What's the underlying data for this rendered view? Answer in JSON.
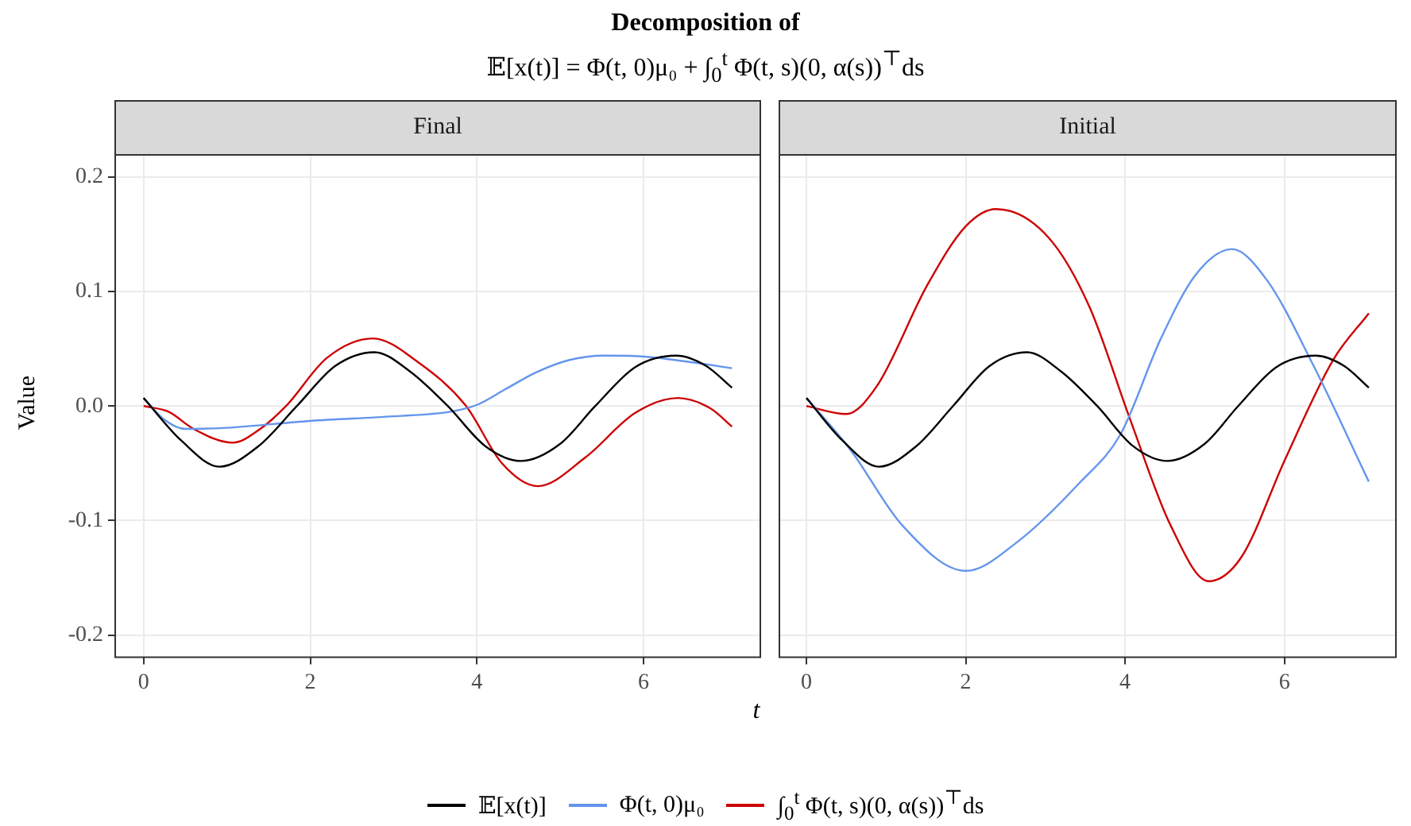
{
  "chart_data": [
    {
      "type": "line",
      "title": "Final",
      "annotations": [
        "Decomposition of",
        "𝔼[x(t)] = Φ(t, 0)μ₀ + ∫$_{0}$$^{t}$ Φ(t, s)(0, α(s))$^{⊤}$ds"
      ],
      "xlabel": "t",
      "ylabel": "Value",
      "xlim": [
        -0.35,
        7.41
      ],
      "ylim": [
        -0.22,
        0.22
      ],
      "xticks": [
        0,
        2,
        4,
        6
      ],
      "grid": true,
      "legend": "bottom",
      "tick_labels": "xy",
      "yticks": [
        -0.2,
        -0.1,
        {
          "value": 0,
          "label": "0.0"
        },
        0.1,
        0.2
      ],
      "series": [
        {
          "name": "𝔼[x(t)]",
          "color": "#000000",
          "x": [
            0,
            0.45,
            0.91,
            1.38,
            1.84,
            2.3,
            2.77,
            3.2,
            3.65,
            4.1,
            4.53,
            5.0,
            5.42,
            5.9,
            6.39,
            6.75,
            7.06
          ],
          "values": [
            0.007,
            -0.03,
            -0.053,
            -0.035,
            0,
            0.035,
            0.047,
            0.03,
            0,
            -0.035,
            -0.048,
            -0.033,
            0,
            0.034,
            0.044,
            0.035,
            0.016
          ]
        },
        {
          "name": "Φ(t, 0)μ₀",
          "color": "#6495ed",
          "x": [
            0,
            0.25,
            0.5,
            1.0,
            2.0,
            3.0,
            3.68,
            4.0,
            4.35,
            4.7,
            5.1,
            5.53,
            6.04,
            6.5,
            7.06
          ],
          "values": [
            0.007,
            -0.012,
            -0.02,
            -0.019,
            -0.013,
            -0.009,
            -0.005,
            0.001,
            0.015,
            0.029,
            0.04,
            0.044,
            0.043,
            0.039,
            0.033
          ]
        },
        {
          "name": "∫$_{0}$$^{t}$ Φ(t, s)(0, α(s))$^{⊤}$ds",
          "color": "#cd0000",
          "x": [
            0,
            0.3,
            0.6,
            1.07,
            1.4,
            1.71,
            2.2,
            2.75,
            3.3,
            3.87,
            4.3,
            4.73,
            5.3,
            5.9,
            6.41,
            6.8,
            7.06
          ],
          "values": [
            0,
            -0.005,
            -0.02,
            -0.032,
            -0.02,
            0,
            0.042,
            0.059,
            0.038,
            0,
            -0.05,
            -0.07,
            -0.045,
            -0.006,
            0.007,
            -0.002,
            -0.018
          ]
        }
      ]
    },
    {
      "type": "line",
      "title": "Initial",
      "xlim": [
        -0.35,
        7.41
      ],
      "ylim": [
        -0.22,
        0.22
      ],
      "xticks": [
        0,
        2,
        4,
        6
      ],
      "yticks": [
        -0.2,
        -0.1,
        0,
        0.1,
        0.2
      ],
      "grid": true,
      "legend": "bottom",
      "tick_labels": "x",
      "series": [
        {
          "name": "𝔼[x(t)]",
          "color": "#000000",
          "x": [
            0,
            0.45,
            0.91,
            1.38,
            1.84,
            2.3,
            2.77,
            3.2,
            3.65,
            4.1,
            4.53,
            5.0,
            5.42,
            5.9,
            6.39,
            6.75,
            7.06
          ],
          "values": [
            0.007,
            -0.03,
            -0.053,
            -0.035,
            0,
            0.035,
            0.047,
            0.03,
            0,
            -0.035,
            -0.048,
            -0.033,
            0,
            0.034,
            0.044,
            0.035,
            0.016
          ]
        },
        {
          "name": "Φ(t, 0)μ₀",
          "color": "#6495ed",
          "x": [
            0,
            0.56,
            1.2,
            2.0,
            2.66,
            3.43,
            3.94,
            4.45,
            4.89,
            5.34,
            5.78,
            6.36,
            7.06
          ],
          "values": [
            0.007,
            -0.039,
            -0.104,
            -0.144,
            -0.118,
            -0.067,
            -0.025,
            0.059,
            0.115,
            0.137,
            0.11,
            0.036,
            -0.066
          ]
        },
        {
          "name": "∫$_{0}$$^{t}$ Φ(t, s)(0, α(s))$^{⊤}$ds",
          "color": "#cd0000",
          "x": [
            0,
            0.5,
            0.88,
            1.52,
            2.0,
            2.38,
            3.04,
            3.55,
            4.06,
            4.57,
            5.05,
            5.46,
            6.0,
            6.61,
            7.06
          ],
          "values": [
            0,
            -0.007,
            0.017,
            0.106,
            0.157,
            0.172,
            0.147,
            0.087,
            -0.011,
            -0.104,
            -0.153,
            -0.132,
            -0.048,
            0.04,
            0.081
          ]
        }
      ]
    }
  ]
}
